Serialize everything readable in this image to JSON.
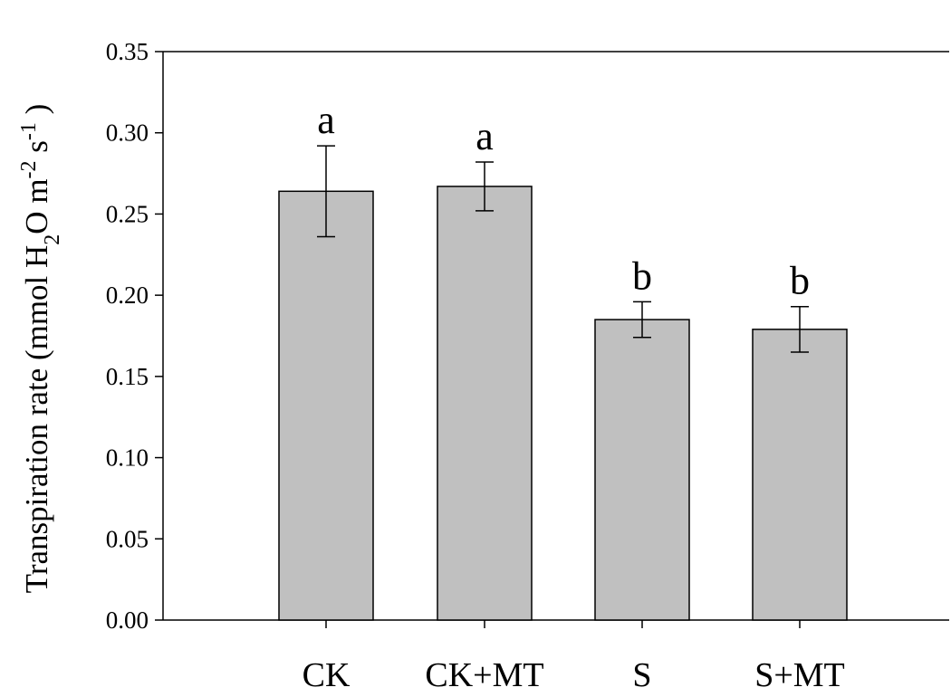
{
  "chart_data": {
    "type": "bar",
    "categories": [
      "CK",
      "CK+MT",
      "S",
      "S+MT"
    ],
    "values": [
      0.264,
      0.267,
      0.185,
      0.179
    ],
    "errors": [
      0.028,
      0.015,
      0.011,
      0.014
    ],
    "significance": [
      "a",
      "a",
      "b",
      "b"
    ],
    "ylabel": {
      "main": "Transpiration rate (mmol H",
      "sub": "2",
      "mid": "O m",
      "sup1": "-2",
      "mid2": " s",
      "sup2": "-1",
      "end": " )"
    },
    "ylim": [
      0,
      0.35
    ],
    "yticks": [
      "0.00",
      "0.05",
      "0.10",
      "0.15",
      "0.20",
      "0.25",
      "0.30",
      "0.35"
    ],
    "bar_color": "#c0c0c0",
    "grid": false
  }
}
